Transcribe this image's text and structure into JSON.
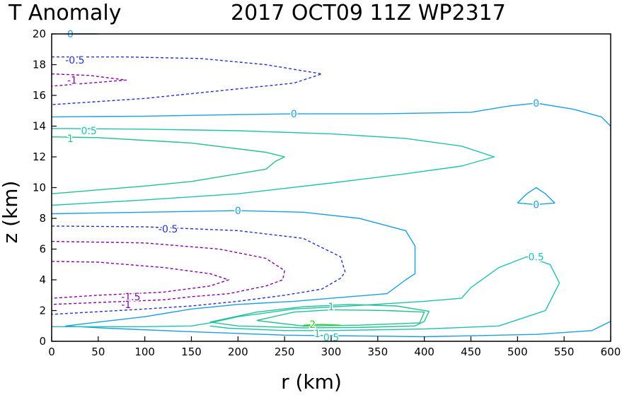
{
  "chart_data": {
    "type": "line",
    "title_left": "T Anomaly",
    "title_right": "2017 OCT09 11Z   WP2317",
    "xlabel": "r (km)",
    "ylabel": "z (km)",
    "xlim": [
      0,
      600
    ],
    "ylim": [
      0,
      20
    ],
    "xticks": [
      0,
      50,
      100,
      150,
      200,
      250,
      300,
      350,
      400,
      450,
      500,
      550,
      600
    ],
    "yticks": [
      0,
      2,
      4,
      6,
      8,
      10,
      12,
      14,
      16,
      18,
      20
    ],
    "grid": false,
    "colors": {
      "-1.5": "#8800aa",
      "-1": "#8800aa",
      "-0.5": "#2233cc",
      "0": "#1a9fe0",
      "0.5": "#1fc2b0",
      "1": "#22c28a",
      "2": "#33cc22"
    },
    "series": [
      {
        "level": 0,
        "dashed": false,
        "points": [
          [
            15,
            20
          ],
          [
            50,
            20
          ]
        ]
      },
      {
        "level": -0.5,
        "dashed": true,
        "points": [
          [
            0,
            18.5
          ],
          [
            80,
            18.5
          ],
          [
            160,
            18.4
          ],
          [
            230,
            18
          ],
          [
            290,
            17.4
          ],
          [
            260,
            16.8
          ],
          [
            180,
            16.3
          ],
          [
            100,
            15.8
          ],
          [
            0,
            15.4
          ]
        ]
      },
      {
        "level": -1,
        "dashed": true,
        "points": [
          [
            0,
            17.4
          ],
          [
            40,
            17.3
          ],
          [
            80,
            17.0
          ],
          [
            40,
            16.8
          ],
          [
            0,
            16.6
          ]
        ]
      },
      {
        "level": 0,
        "dashed": false,
        "points": [
          [
            0,
            14.6
          ],
          [
            100,
            14.65
          ],
          [
            200,
            14.75
          ],
          [
            260,
            14.8
          ],
          [
            350,
            14.8
          ],
          [
            450,
            14.9
          ],
          [
            490,
            15.3
          ],
          [
            520,
            15.5
          ],
          [
            560,
            15.1
          ],
          [
            590,
            14.6
          ],
          [
            600,
            14.0
          ]
        ]
      },
      {
        "level": 0.5,
        "dashed": false,
        "points": [
          [
            0,
            13.85
          ],
          [
            100,
            13.8
          ],
          [
            200,
            13.7
          ],
          [
            300,
            13.5
          ],
          [
            380,
            13.2
          ],
          [
            440,
            12.7
          ],
          [
            475,
            12.0
          ],
          [
            440,
            11.4
          ],
          [
            380,
            10.9
          ],
          [
            300,
            10.3
          ],
          [
            200,
            9.6
          ],
          [
            100,
            9.2
          ],
          [
            0,
            8.85
          ]
        ]
      },
      {
        "level": 1,
        "dashed": false,
        "points": [
          [
            0,
            13.3
          ],
          [
            50,
            13.25
          ],
          [
            150,
            12.9
          ],
          [
            230,
            12.3
          ],
          [
            250,
            12.0
          ],
          [
            240,
            11.7
          ],
          [
            230,
            11.2
          ],
          [
            200,
            10.9
          ],
          [
            150,
            10.4
          ],
          [
            100,
            10.1
          ],
          [
            0,
            9.6
          ]
        ]
      },
      {
        "level": 0,
        "dashed": false,
        "points": [
          [
            0,
            8.3
          ],
          [
            100,
            8.4
          ],
          [
            200,
            8.5
          ],
          [
            270,
            8.4
          ],
          [
            330,
            8.0
          ],
          [
            380,
            7.2
          ],
          [
            390,
            6.2
          ],
          [
            390,
            4.4
          ],
          [
            380,
            4.0
          ],
          [
            360,
            3.1
          ],
          [
            260,
            2.6
          ],
          [
            200,
            2.4
          ],
          [
            150,
            2.1
          ],
          [
            100,
            1.6
          ],
          [
            50,
            1.25
          ],
          [
            15,
            1.0
          ],
          [
            60,
            0.85
          ],
          [
            140,
            0.65
          ],
          [
            250,
            0.4
          ],
          [
            400,
            0.3
          ],
          [
            520,
            0.45
          ],
          [
            580,
            0.7
          ],
          [
            600,
            1.3
          ]
        ]
      },
      {
        "level": -0.5,
        "dashed": true,
        "points": [
          [
            0,
            7.5
          ],
          [
            100,
            7.45
          ],
          [
            200,
            7.2
          ],
          [
            270,
            6.7
          ],
          [
            310,
            5.5
          ],
          [
            315,
            4.5
          ],
          [
            310,
            4.1
          ],
          [
            290,
            3.4
          ],
          [
            250,
            3.0
          ],
          [
            200,
            2.6
          ],
          [
            150,
            2.3
          ],
          [
            100,
            2.1
          ],
          [
            0,
            1.75
          ]
        ]
      },
      {
        "level": -1,
        "dashed": true,
        "points": [
          [
            0,
            6.5
          ],
          [
            100,
            6.4
          ],
          [
            180,
            6.0
          ],
          [
            230,
            5.4
          ],
          [
            250,
            4.6
          ],
          [
            248,
            4.0
          ],
          [
            230,
            3.6
          ],
          [
            190,
            3.1
          ],
          [
            150,
            2.9
          ],
          [
            120,
            2.7
          ],
          [
            0,
            2.4
          ]
        ]
      },
      {
        "level": -1.5,
        "dashed": true,
        "points": [
          [
            0,
            5.2
          ],
          [
            50,
            5.15
          ],
          [
            120,
            4.8
          ],
          [
            170,
            4.4
          ],
          [
            190,
            4.0
          ],
          [
            170,
            3.6
          ],
          [
            120,
            3.2
          ],
          [
            50,
            3.0
          ],
          [
            0,
            2.8
          ]
        ]
      },
      {
        "level": 0,
        "dashed": false,
        "points": [
          [
            500,
            9.0
          ],
          [
            510,
            9.6
          ],
          [
            520,
            10.0
          ],
          [
            530,
            9.6
          ],
          [
            540,
            9.0
          ],
          [
            520,
            8.9
          ],
          [
            500,
            9.0
          ]
        ]
      },
      {
        "level": 0.5,
        "dashed": false,
        "points": [
          [
            0,
            0.95
          ],
          [
            100,
            0.95
          ],
          [
            150,
            1.0
          ],
          [
            170,
            1.2
          ],
          [
            200,
            1.6
          ],
          [
            260,
            2.1
          ],
          [
            320,
            2.3
          ],
          [
            400,
            2.6
          ],
          [
            440,
            2.8
          ],
          [
            450,
            3.5
          ],
          [
            480,
            4.8
          ],
          [
            510,
            5.5
          ],
          [
            535,
            5.0
          ],
          [
            545,
            3.8
          ],
          [
            530,
            2.0
          ],
          [
            480,
            1.0
          ],
          [
            400,
            0.8
          ],
          [
            300,
            0.7
          ],
          [
            250,
            0.7
          ],
          [
            190,
            0.85
          ],
          [
            170,
            1.0
          ]
        ]
      },
      {
        "level": 1,
        "dashed": false,
        "points": [
          [
            170,
            1.25
          ],
          [
            220,
            1.9
          ],
          [
            270,
            2.25
          ],
          [
            320,
            2.4
          ],
          [
            370,
            2.3
          ],
          [
            405,
            1.95
          ],
          [
            400,
            1.3
          ],
          [
            390,
            1.0
          ],
          [
            330,
            0.9
          ],
          [
            270,
            0.88
          ],
          [
            200,
            1.0
          ],
          [
            170,
            1.25
          ]
        ]
      },
      {
        "level": 1,
        "dashed": false,
        "points": [
          [
            220,
            1.35
          ],
          [
            260,
            1.9
          ],
          [
            300,
            2.05
          ],
          [
            360,
            2.0
          ],
          [
            400,
            1.9
          ],
          [
            395,
            1.2
          ],
          [
            330,
            1.05
          ],
          [
            270,
            1.0
          ],
          [
            220,
            1.35
          ]
        ]
      },
      {
        "level": 2,
        "dashed": false,
        "points": [
          [
            270,
            1.05
          ],
          [
            290,
            1.1
          ],
          [
            310,
            1.05
          ]
        ]
      }
    ],
    "labels": [
      {
        "text": "0",
        "x": 20,
        "y": 20,
        "level": 0
      },
      {
        "text": "-0.5",
        "x": 25,
        "y": 18.3,
        "level": -0.5
      },
      {
        "text": "-1",
        "x": 22,
        "y": 17.0,
        "level": -1
      },
      {
        "text": "0",
        "x": 260,
        "y": 14.8,
        "level": 0
      },
      {
        "text": "0",
        "x": 520,
        "y": 15.5,
        "level": 0
      },
      {
        "text": "0.5",
        "x": 40,
        "y": 13.7,
        "level": 0.5
      },
      {
        "text": "1",
        "x": 20,
        "y": 13.2,
        "level": 1
      },
      {
        "text": "0",
        "x": 200,
        "y": 8.5,
        "level": 0
      },
      {
        "text": "0",
        "x": 520,
        "y": 8.9,
        "level": 0
      },
      {
        "text": "-0.5",
        "x": 125,
        "y": 7.3,
        "level": -0.5
      },
      {
        "text": "0.5",
        "x": 520,
        "y": 5.5,
        "level": 0.5
      },
      {
        "text": "-1.5",
        "x": 85,
        "y": 2.9,
        "level": -1.5
      },
      {
        "text": "-1",
        "x": 80,
        "y": 2.4,
        "level": -1
      },
      {
        "text": "1",
        "x": 300,
        "y": 2.25,
        "level": 1
      },
      {
        "text": "2",
        "x": 280,
        "y": 1.1,
        "level": 2
      },
      {
        "text": "1",
        "x": 285,
        "y": 0.5,
        "level": 1
      },
      {
        "text": "0.5",
        "x": 300,
        "y": 0.25,
        "level": 0.5
      }
    ]
  }
}
